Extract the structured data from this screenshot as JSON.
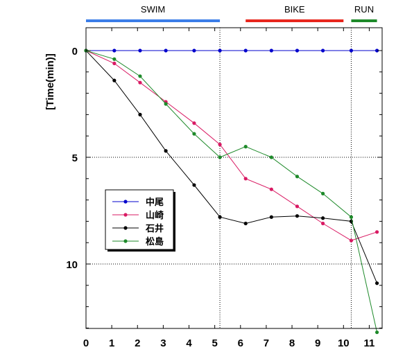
{
  "chart_data": {
    "type": "line",
    "ylabel": "[Time(min)]",
    "xlim": [
      0,
      11.5
    ],
    "ylim": [
      0,
      13.1
    ],
    "y_inverted": true,
    "x_ticks": [
      "0",
      "1",
      "2",
      "3",
      "4",
      "5",
      "6",
      "7",
      "8",
      "9",
      "10",
      "11"
    ],
    "y_ticks": [
      "0",
      "5",
      "10"
    ],
    "y_grid_values": [
      5,
      10
    ],
    "vertical_dividers": [
      5.2,
      10.3
    ],
    "segments": [
      {
        "label": "SWIM",
        "color": "#3a7de8",
        "x_start": 0,
        "x_end": 5.2
      },
      {
        "label": "BIKE",
        "color": "#e8261d",
        "x_start": 6.2,
        "x_end": 10.0
      },
      {
        "label": "RUN",
        "color": "#1e8a2a",
        "x_start": 10.3,
        "x_end": 11.3
      }
    ],
    "legend_position": "center-left",
    "series": [
      {
        "name": "中尾",
        "color": "#0000cc",
        "text_color": "#0000cc",
        "points": [
          [
            0,
            0
          ],
          [
            1.1,
            0
          ],
          [
            2.1,
            0
          ],
          [
            3.1,
            0
          ],
          [
            4.2,
            0
          ],
          [
            5.2,
            0
          ],
          [
            6.2,
            0
          ],
          [
            7.2,
            0
          ],
          [
            8.2,
            0
          ],
          [
            9.2,
            0
          ],
          [
            10.3,
            0
          ],
          [
            11.3,
            0
          ]
        ]
      },
      {
        "name": "山崎",
        "color": "#d91a63",
        "text_color": "#d91a63",
        "points": [
          [
            0,
            0
          ],
          [
            1.1,
            0.6
          ],
          [
            2.1,
            1.5
          ],
          [
            3.1,
            2.4
          ],
          [
            4.2,
            3.4
          ],
          [
            5.2,
            4.4
          ],
          [
            6.2,
            6.0
          ],
          [
            7.2,
            6.5
          ],
          [
            8.2,
            7.3
          ],
          [
            9.2,
            8.1
          ],
          [
            10.3,
            8.9
          ],
          [
            11.3,
            8.5
          ]
        ]
      },
      {
        "name": "石井",
        "color": "#000000",
        "text_color": "#000000",
        "points": [
          [
            0,
            0
          ],
          [
            1.1,
            1.4
          ],
          [
            2.1,
            3.0
          ],
          [
            3.1,
            4.7
          ],
          [
            4.2,
            6.3
          ],
          [
            5.2,
            7.8
          ],
          [
            6.2,
            8.1
          ],
          [
            7.2,
            7.8
          ],
          [
            8.2,
            7.75
          ],
          [
            9.2,
            7.85
          ],
          [
            10.3,
            8.0
          ],
          [
            11.3,
            10.9
          ]
        ]
      },
      {
        "name": "松島",
        "color": "#1e8a2a",
        "text_color": "#1e8a2a",
        "points": [
          [
            0,
            0
          ],
          [
            1.1,
            0.4
          ],
          [
            2.1,
            1.2
          ],
          [
            3.1,
            2.5
          ],
          [
            4.2,
            3.9
          ],
          [
            5.2,
            5.0
          ],
          [
            6.2,
            4.5
          ],
          [
            7.2,
            5.0
          ],
          [
            8.2,
            5.9
          ],
          [
            9.2,
            6.7
          ],
          [
            10.3,
            7.8
          ],
          [
            11.3,
            13.2
          ]
        ]
      }
    ]
  }
}
